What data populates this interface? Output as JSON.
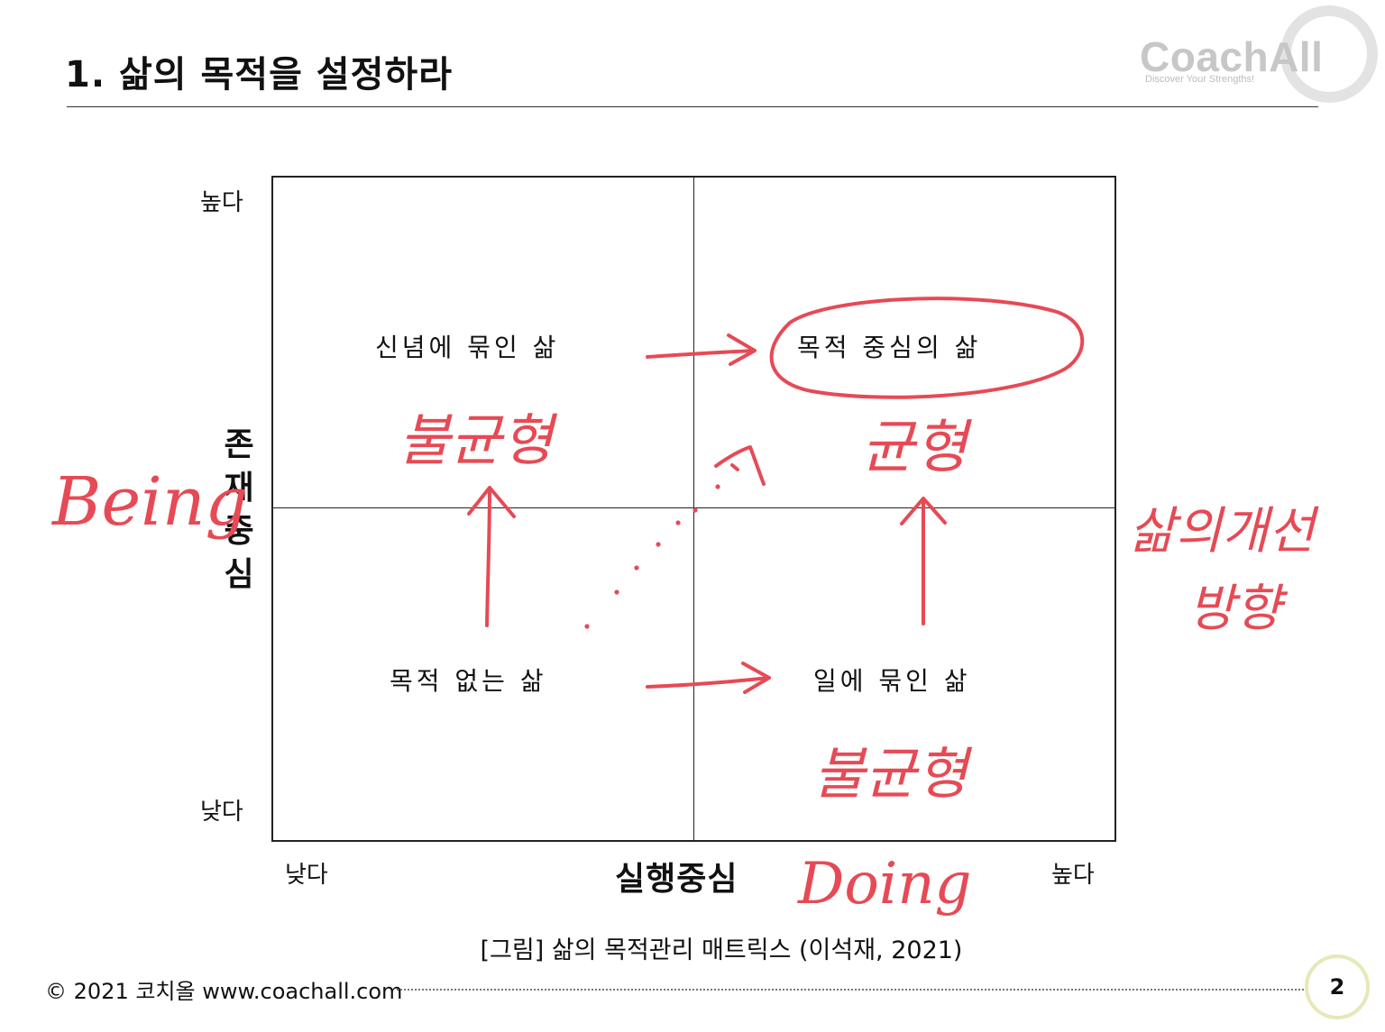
{
  "header": {
    "title": "1. 삶의 목적을 설정하라"
  },
  "logo": {
    "name": "CoachAll",
    "tagline": "Discover Your Strengths!",
    "ring_color": "#e3e3e3"
  },
  "matrix": {
    "y_axis": {
      "label_chars": [
        "존",
        "재",
        "중",
        "심"
      ],
      "high": "높다",
      "low": "낮다"
    },
    "x_axis": {
      "label": "실행중심",
      "low": "낮다",
      "high": "높다"
    },
    "quadrants": {
      "top_left": "신념에 묶인 삶",
      "top_right": "목적 중심의 삶",
      "bottom_left": "목적 없는 삶",
      "bottom_right": "일에 묶인 삶"
    }
  },
  "annotations": {
    "color": "#e64a55",
    "being": "Being",
    "doing": "Doing",
    "top_left_note": "불균형",
    "top_right_note": "균형",
    "bottom_right_note": "불균형",
    "improve_line1": "삶의개선",
    "improve_line2": "방향"
  },
  "caption": "[그림] 삶의 목적관리 매트릭스 (이석재, 2021)",
  "footer": {
    "copyright": "© 2021 코치올 www.coachall.com",
    "page_number": "2"
  }
}
